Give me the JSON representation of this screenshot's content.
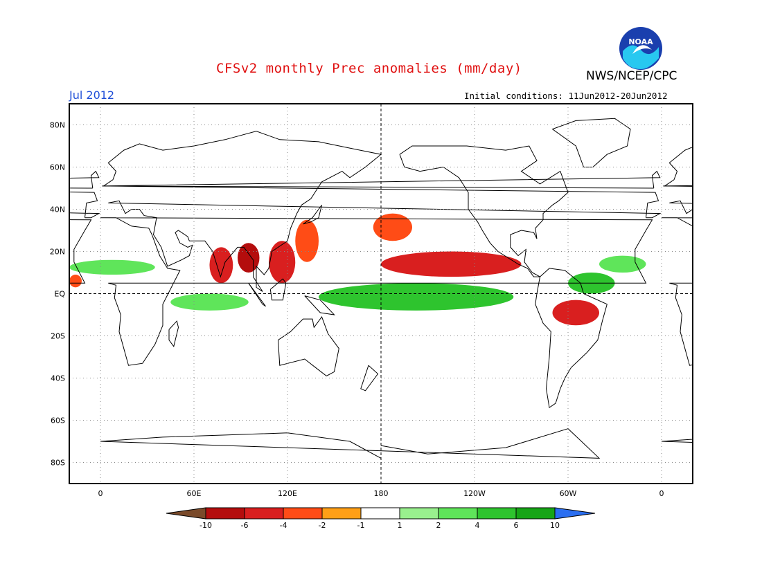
{
  "header": {
    "title": "CFSv2 monthly Prec anomalies (mm/day)",
    "organization": "NWS/NCEP/CPC",
    "logo_text": "NOAA",
    "month": "Jul 2012",
    "initial_conditions": "Initial conditions: 11Jun2012-20Jun2012"
  },
  "axes": {
    "lat_labels": [
      "80N",
      "60N",
      "40N",
      "20N",
      "EQ",
      "20S",
      "40S",
      "60S",
      "80S"
    ],
    "lat_values": [
      80,
      60,
      40,
      20,
      0,
      -20,
      -40,
      -60,
      -80
    ],
    "lon_labels": [
      "0",
      "60E",
      "120E",
      "180",
      "120W",
      "60W",
      "0"
    ],
    "lon_values": [
      0,
      60,
      120,
      180,
      240,
      300,
      360
    ],
    "lon_range": [
      -20,
      380
    ],
    "lat_range": [
      -90,
      90
    ]
  },
  "colorbar": {
    "labels": [
      "-10",
      "-6",
      "-4",
      "-2",
      "-1",
      "1",
      "2",
      "4",
      "6",
      "10"
    ],
    "colors": [
      "#7a4a2a",
      "#b40d0d",
      "#d91f1f",
      "#ff4c16",
      "#ff9f16",
      "#ffffff",
      "#99f08e",
      "#5fe55a",
      "#2ec42e",
      "#16a516",
      "#2a6ef0"
    ]
  },
  "chart_data": {
    "type": "heatmap",
    "variable": "precipitation anomaly",
    "units": "mm/day",
    "anomaly_regions": [
      {
        "lon": [
          -20,
          35
        ],
        "lat": [
          9,
          16
        ],
        "value": 3
      },
      {
        "lon": [
          -20,
          -12
        ],
        "lat": [
          3,
          9
        ],
        "value": -3
      },
      {
        "lon": [
          45,
          95
        ],
        "lat": [
          -8,
          0
        ],
        "value": 3
      },
      {
        "lon": [
          70,
          85
        ],
        "lat": [
          5,
          22
        ],
        "value": -4
      },
      {
        "lon": [
          88,
          102
        ],
        "lat": [
          10,
          24
        ],
        "value": -6
      },
      {
        "lon": [
          108,
          125
        ],
        "lat": [
          5,
          25
        ],
        "value": -5
      },
      {
        "lon": [
          125,
          140
        ],
        "lat": [
          15,
          35
        ],
        "value": -3
      },
      {
        "lon": [
          140,
          265
        ],
        "lat": [
          -8,
          5
        ],
        "value": 4
      },
      {
        "lon": [
          180,
          270
        ],
        "lat": [
          8,
          20
        ],
        "value": -4
      },
      {
        "lon": [
          175,
          200
        ],
        "lat": [
          25,
          38
        ],
        "value": -2
      },
      {
        "lon": [
          300,
          330
        ],
        "lat": [
          0,
          10
        ],
        "value": 4
      },
      {
        "lon": [
          320,
          350
        ],
        "lat": [
          10,
          18
        ],
        "value": 3
      },
      {
        "lon": [
          290,
          320
        ],
        "lat": [
          -15,
          -3
        ],
        "value": -4
      }
    ]
  }
}
